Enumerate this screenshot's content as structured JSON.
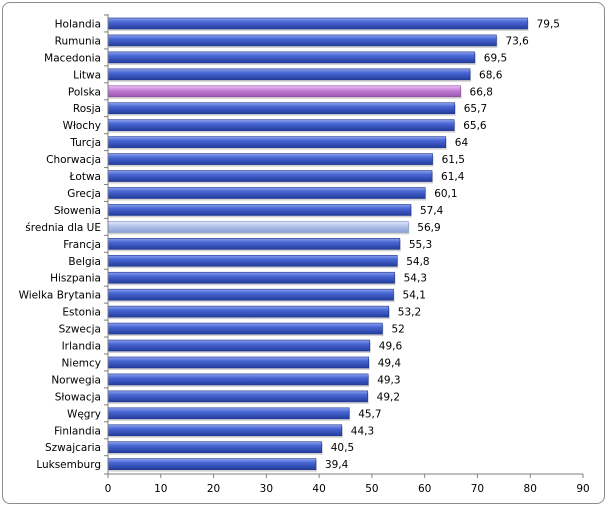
{
  "chart_data": {
    "type": "bar",
    "orientation": "horizontal",
    "title": "",
    "xlabel": "",
    "ylabel": "",
    "xlim": [
      0,
      90
    ],
    "xticks": [
      0,
      10,
      20,
      30,
      40,
      50,
      60,
      70,
      80,
      90
    ],
    "grid": false,
    "legend": "none",
    "categories": [
      "Holandia",
      "Rumunia",
      "Macedonia",
      "Litwa",
      "Polska",
      "Rosja",
      "Włochy",
      "Turcja",
      "Chorwacja",
      "Łotwa",
      "Grecja",
      "Słowenia",
      "średnia dla UE",
      "Francja",
      "Belgia",
      "Hiszpania",
      "Wielka Brytania",
      "Estonia",
      "Szwecja",
      "Irlandia",
      "Niemcy",
      "Norwegia",
      "Słowacja",
      "Węgry",
      "Finlandia",
      "Szwajcaria",
      "Luksemburg"
    ],
    "values": [
      79.5,
      73.6,
      69.5,
      68.6,
      66.8,
      65.7,
      65.6,
      64,
      61.5,
      61.4,
      60.1,
      57.4,
      56.9,
      55.3,
      54.8,
      54.3,
      54.1,
      53.2,
      52,
      49.6,
      49.4,
      49.3,
      49.2,
      45.7,
      44.3,
      40.5,
      39.4
    ],
    "value_labels": [
      "79,5",
      "73,6",
      "69,5",
      "68,6",
      "66,8",
      "65,7",
      "65,6",
      "64",
      "61,5",
      "61,4",
      "60,1",
      "57,4",
      "56,9",
      "55,3",
      "54,8",
      "54,3",
      "54,1",
      "53,2",
      "52",
      "49,6",
      "49,4",
      "49,3",
      "49,2",
      "45,7",
      "44,3",
      "40,5",
      "39,4"
    ],
    "colors": {
      "default": "#3355c4",
      "highlight_Polska": "#c27ed4",
      "highlight_srednia": "#b5c5ea"
    }
  }
}
